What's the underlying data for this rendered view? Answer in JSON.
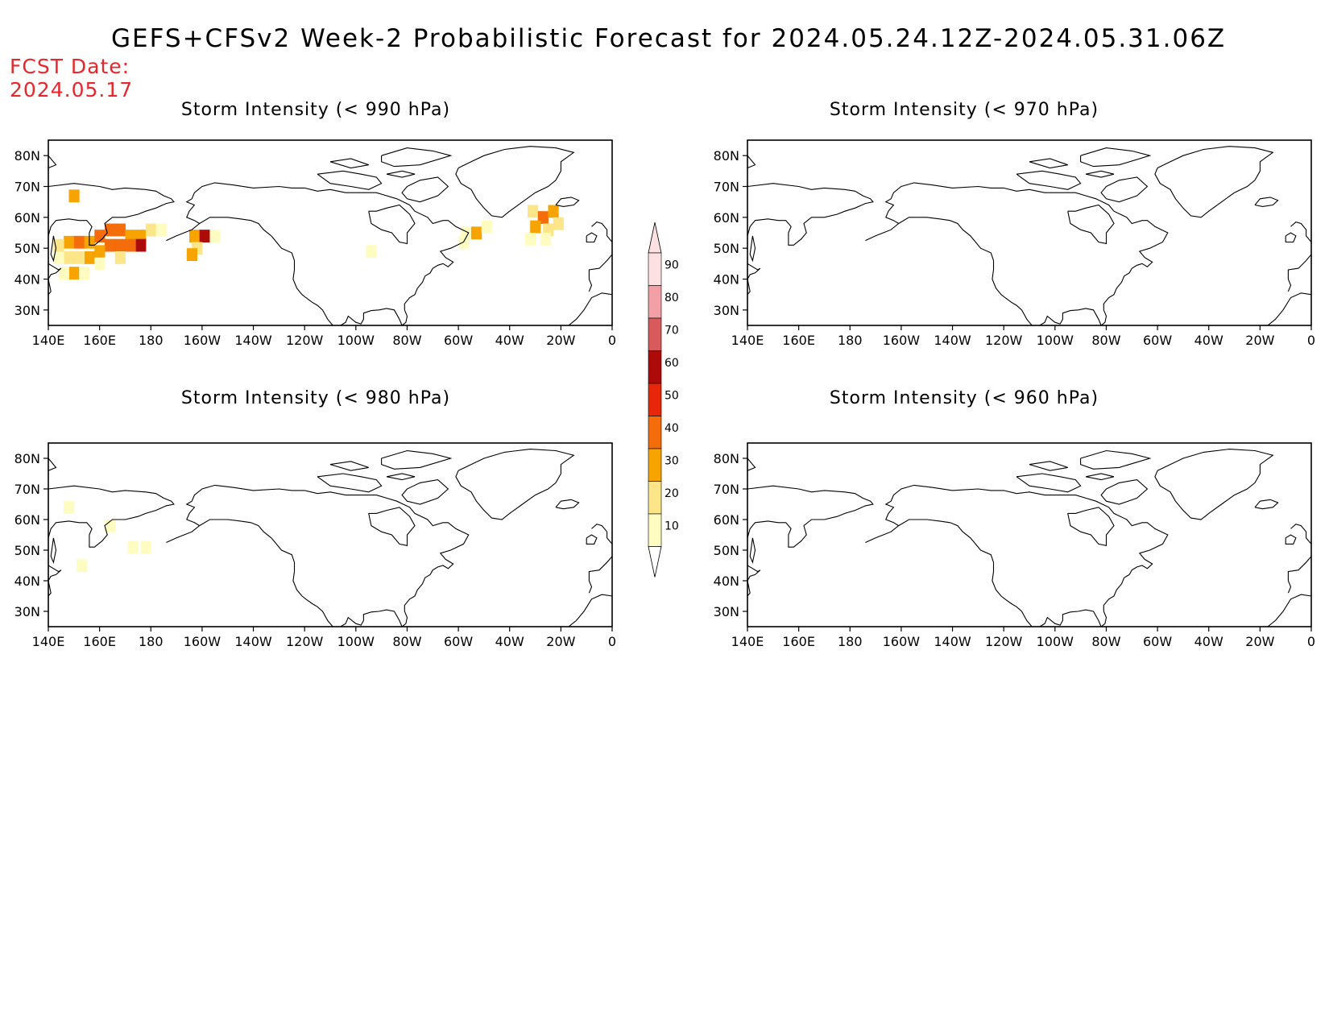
{
  "title": "GEFS+CFSv2 Week-2 Probabilistic Forecast for 2024.05.24.12Z-2024.05.31.06Z",
  "fcst_date_label": "FCST Date:",
  "fcst_date_value": "2024.05.17",
  "panels": [
    {
      "id": "p990",
      "title": "Storm Intensity (< 990 hPa)"
    },
    {
      "id": "p970",
      "title": "Storm Intensity (< 970 hPa)"
    },
    {
      "id": "p980",
      "title": "Storm Intensity (< 980 hPa)"
    },
    {
      "id": "p960",
      "title": "Storm Intensity (< 960 hPa)"
    }
  ],
  "lon_ticks": [
    "140E",
    "160E",
    "180",
    "160W",
    "140W",
    "120W",
    "100W",
    "80W",
    "60W",
    "40W",
    "20W",
    "0"
  ],
  "lat_ticks": [
    "80N",
    "70N",
    "60N",
    "50N",
    "40N",
    "30N"
  ],
  "lon_range": [
    140,
    360
  ],
  "lat_range": [
    25,
    85
  ],
  "colorbar": {
    "levels": [
      "10",
      "20",
      "30",
      "40",
      "50",
      "60",
      "70",
      "80",
      "90"
    ],
    "colors": [
      "#fffcc2",
      "#fde68a",
      "#f7a400",
      "#f46d0a",
      "#e8260c",
      "#ad0a0a",
      "#d85a5a",
      "#f2a0a5",
      "#fde0e2"
    ]
  },
  "probability_cells": {
    "p990": [
      {
        "lon": 150,
        "lat": 67,
        "p": 35
      },
      {
        "lon": 148,
        "lat": 52,
        "p": 30
      },
      {
        "lon": 152,
        "lat": 52,
        "p": 40
      },
      {
        "lon": 156,
        "lat": 52,
        "p": 35
      },
      {
        "lon": 160,
        "lat": 54,
        "p": 40
      },
      {
        "lon": 164,
        "lat": 56,
        "p": 45
      },
      {
        "lon": 168,
        "lat": 56,
        "p": 40
      },
      {
        "lon": 172,
        "lat": 54,
        "p": 35
      },
      {
        "lon": 176,
        "lat": 54,
        "p": 30
      },
      {
        "lon": 180,
        "lat": 56,
        "p": 20
      },
      {
        "lon": 184,
        "lat": 56,
        "p": 15
      },
      {
        "lon": 176,
        "lat": 51,
        "p": 65
      },
      {
        "lon": 172,
        "lat": 51,
        "p": 40
      },
      {
        "lon": 168,
        "lat": 51,
        "p": 45
      },
      {
        "lon": 164,
        "lat": 51,
        "p": 40
      },
      {
        "lon": 160,
        "lat": 49,
        "p": 35
      },
      {
        "lon": 156,
        "lat": 47,
        "p": 30
      },
      {
        "lon": 152,
        "lat": 47,
        "p": 25
      },
      {
        "lon": 148,
        "lat": 47,
        "p": 20
      },
      {
        "lon": 144,
        "lat": 47,
        "p": 15
      },
      {
        "lon": 144,
        "lat": 51,
        "p": 20
      },
      {
        "lon": 150,
        "lat": 42,
        "p": 35
      },
      {
        "lon": 154,
        "lat": 42,
        "p": 15
      },
      {
        "lon": 146,
        "lat": 42,
        "p": 15
      },
      {
        "lon": 160,
        "lat": 45,
        "p": 15
      },
      {
        "lon": 168,
        "lat": 47,
        "p": 20
      },
      {
        "lon": 197,
        "lat": 54,
        "p": 30
      },
      {
        "lon": 201,
        "lat": 54,
        "p": 65
      },
      {
        "lon": 205,
        "lat": 54,
        "p": 15
      },
      {
        "lon": 198,
        "lat": 50,
        "p": 20
      },
      {
        "lon": 196,
        "lat": 48,
        "p": 35
      },
      {
        "lon": 303,
        "lat": 55,
        "p": 15
      },
      {
        "lon": 307,
        "lat": 55,
        "p": 30
      },
      {
        "lon": 311,
        "lat": 57,
        "p": 15
      },
      {
        "lon": 302,
        "lat": 52,
        "p": 15
      },
      {
        "lon": 329,
        "lat": 62,
        "p": 25
      },
      {
        "lon": 333,
        "lat": 60,
        "p": 40
      },
      {
        "lon": 337,
        "lat": 62,
        "p": 30
      },
      {
        "lon": 330,
        "lat": 57,
        "p": 35
      },
      {
        "lon": 335,
        "lat": 56,
        "p": 25
      },
      {
        "lon": 339,
        "lat": 58,
        "p": 20
      },
      {
        "lon": 328,
        "lat": 53,
        "p": 15
      },
      {
        "lon": 334,
        "lat": 53,
        "p": 15
      },
      {
        "lon": 266,
        "lat": 49,
        "p": 10
      }
    ],
    "p980": [
      {
        "lon": 148,
        "lat": 64,
        "p": 10
      },
      {
        "lon": 164,
        "lat": 58,
        "p": 10
      },
      {
        "lon": 173,
        "lat": 51,
        "p": 15
      },
      {
        "lon": 178,
        "lat": 51,
        "p": 10
      },
      {
        "lon": 153,
        "lat": 45,
        "p": 15
      }
    ],
    "p970": [],
    "p960": []
  }
}
